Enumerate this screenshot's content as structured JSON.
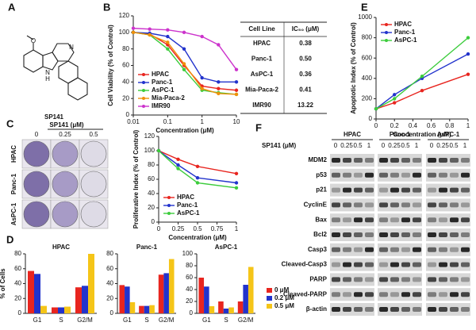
{
  "panels": [
    "A",
    "B",
    "C",
    "D",
    "E",
    "F"
  ],
  "structure": {
    "label": "SP141",
    "atoms": [
      "O",
      "N",
      "N",
      "H"
    ]
  },
  "table": {
    "header": [
      "Cell Line",
      "IC₅₀ (μM)"
    ],
    "rows": [
      [
        "HPAC",
        "0.38"
      ],
      [
        "Panc-1",
        "0.50"
      ],
      [
        "AsPC-1",
        "0.36"
      ],
      [
        "Mia-Paca-2",
        "0.41"
      ],
      [
        "IMR90",
        "13.22"
      ]
    ]
  },
  "colony": {
    "treatment_label": "SP141 (μM)",
    "doses": [
      "0",
      "0.25",
      "0.5"
    ],
    "cell_lines": [
      "HPAC",
      "Panc-1",
      "AsPC-1"
    ]
  },
  "blot": {
    "treatment_label": "SP141 (μM)",
    "groups": [
      "HPAC",
      "Panc-1",
      "AsPC-1"
    ],
    "lanes": [
      "0",
      "0.25",
      "0.5",
      "1"
    ],
    "proteins": [
      "MDM2",
      "p53",
      "p21",
      "CyclinE",
      "Bax",
      "Bcl2",
      "Casp3",
      "Cleaved-Casp3",
      "PARP",
      "Cleaved-PARP",
      "β-actin"
    ]
  },
  "chart_data": [
    {
      "type": "line",
      "xlog": true,
      "x_label": "Concentration (μM)",
      "y_label": "Cell Viability (% of Control)",
      "x": [
        0.01,
        0.03,
        0.1,
        0.3,
        1,
        3,
        10
      ],
      "xlim": [
        0.01,
        10
      ],
      "xticks": [
        0.01,
        0.1,
        1,
        10
      ],
      "ylim": [
        0,
        120
      ],
      "yticks": [
        0,
        20,
        40,
        60,
        80,
        100,
        120
      ],
      "legend": "lower left",
      "series": [
        {
          "name": "HPAC",
          "color": "#e8251f",
          "values": [
            100,
            98,
            85,
            60,
            35,
            32,
            30
          ]
        },
        {
          "name": "Panc-1",
          "color": "#2233cc",
          "values": [
            100,
            99,
            95,
            80,
            45,
            40,
            40
          ]
        },
        {
          "name": "AsPC-1",
          "color": "#3ccc3c",
          "values": [
            100,
            97,
            80,
            55,
            30,
            27,
            25
          ]
        },
        {
          "name": "Mia-Paca-2",
          "color": "#f0900a",
          "values": [
            100,
            97,
            88,
            62,
            32,
            26,
            25
          ]
        },
        {
          "name": "IMR90",
          "color": "#cc33cc",
          "values": [
            105,
            104,
            103,
            100,
            95,
            85,
            55
          ]
        }
      ]
    },
    {
      "type": "line",
      "x_label": "Concentration (μM)",
      "y_label": "Proliferative Index (% of Control)",
      "x": [
        0,
        0.25,
        0.5,
        1
      ],
      "xlim": [
        0,
        1
      ],
      "xticks": [
        0,
        0.25,
        0.5,
        0.75,
        1
      ],
      "ylim": [
        0,
        120
      ],
      "yticks": [
        0,
        20,
        40,
        60,
        80,
        100,
        120
      ],
      "legend": "lower left",
      "series": [
        {
          "name": "HPAC",
          "color": "#e8251f",
          "values": [
            100,
            88,
            78,
            68
          ]
        },
        {
          "name": "Panc-1",
          "color": "#2233cc",
          "values": [
            100,
            80,
            62,
            55
          ]
        },
        {
          "name": "AsPC-1",
          "color": "#3ccc3c",
          "values": [
            100,
            75,
            55,
            48
          ]
        }
      ]
    },
    {
      "type": "bar",
      "title": "HPAC",
      "y_label": "% of Cells",
      "categories": [
        "G1",
        "S",
        "G2/M"
      ],
      "ylim": [
        0,
        80
      ],
      "yticks": [
        0,
        20,
        40,
        60,
        80
      ],
      "series": [
        {
          "color": "#e8251f",
          "values": [
            57,
            8,
            35
          ]
        },
        {
          "color": "#2233cc",
          "values": [
            53,
            8,
            37
          ]
        },
        {
          "color": "#f5c518",
          "values": [
            10,
            9,
            80
          ]
        }
      ]
    },
    {
      "type": "bar",
      "title": "Panc-1",
      "categories": [
        "G1",
        "S",
        "G2/M"
      ],
      "ylim": [
        0,
        80
      ],
      "yticks": [
        0,
        20,
        40,
        60,
        80
      ],
      "series": [
        {
          "color": "#e8251f",
          "values": [
            38,
            10,
            52
          ]
        },
        {
          "color": "#2233cc",
          "values": [
            36,
            10,
            54
          ]
        },
        {
          "color": "#f5c518",
          "values": [
            15,
            11,
            73
          ]
        }
      ]
    },
    {
      "type": "bar",
      "title": "AsPC-1",
      "categories": [
        "G1",
        "S",
        "G2/M"
      ],
      "ylim": [
        0,
        100
      ],
      "yticks": [
        0,
        20,
        40,
        60,
        80,
        100
      ],
      "legend": "outside right",
      "series": [
        {
          "name": "0 μM",
          "color": "#e8251f",
          "values": [
            60,
            20,
            20
          ]
        },
        {
          "name": "0.2 μM",
          "color": "#2233cc",
          "values": [
            45,
            8,
            48
          ]
        },
        {
          "name": "0.5 μM",
          "color": "#f5c518",
          "values": [
            12,
            10,
            78
          ]
        }
      ]
    },
    {
      "type": "line",
      "x_label": "Concentration (μM)",
      "y_label": "Apoptotic Index (% of Control)",
      "x": [
        0,
        0.2,
        0.5,
        1
      ],
      "xlim": [
        0,
        1
      ],
      "xticks": [
        0,
        0.2,
        0.4,
        0.6,
        0.8,
        1
      ],
      "ylim": [
        0,
        1000
      ],
      "yticks": [
        0,
        200,
        400,
        600,
        800,
        1000
      ],
      "legend": "upper left",
      "series": [
        {
          "name": "HPAC",
          "color": "#e8251f",
          "values": [
            100,
            160,
            280,
            440
          ]
        },
        {
          "name": "Panc-1",
          "color": "#2233cc",
          "values": [
            100,
            240,
            400,
            640
          ]
        },
        {
          "name": "AsPC-1",
          "color": "#3ccc3c",
          "values": [
            100,
            200,
            420,
            800
          ]
        }
      ]
    }
  ]
}
